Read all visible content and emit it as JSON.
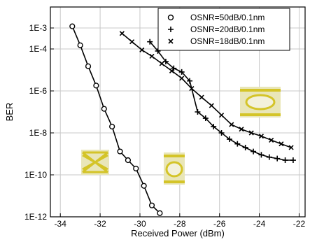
{
  "chart_data": {
    "type": "line",
    "title": "",
    "xlabel": "Received Power (dBm)",
    "ylabel": "BER",
    "xlim": [
      -34.5,
      -21.7
    ],
    "x_ticks": [
      -34,
      -32,
      -30,
      -28,
      -26,
      -24,
      -22
    ],
    "x_tick_labels": [
      "-34",
      "-32",
      "-30",
      "-28",
      "-26",
      "-24",
      "-22"
    ],
    "y_scale": "log",
    "ylim": [
      1e-12,
      0.01
    ],
    "y_ticks": [
      0.001,
      0.0001,
      1e-06,
      1e-08,
      1e-10,
      1e-12
    ],
    "y_tick_labels": [
      "1E-3",
      "1E-4",
      "1E-6",
      "1E-8",
      "1E-10",
      "1E-12"
    ],
    "grid": true,
    "legend_position": "top-right",
    "series": [
      {
        "name": "OSNR=50dB/0.1nm",
        "marker": "circle",
        "x": [
          -33.4,
          -33.0,
          -32.6,
          -32.2,
          -31.8,
          -31.4,
          -31.0,
          -30.6,
          -30.2,
          -29.8,
          -29.4,
          -29.0
        ],
        "y": [
          0.0012,
          0.00015,
          1.5e-05,
          1.8e-06,
          1.4e-07,
          2e-08,
          1.3e-09,
          5e-10,
          2e-10,
          3e-11,
          3.5e-12,
          1.5e-12
        ]
      },
      {
        "name": "OSNR=20dB/0.1nm",
        "marker": "plus",
        "x": [
          -29.5,
          -29.1,
          -28.7,
          -28.3,
          -27.9,
          -27.5,
          -27.1,
          -26.7,
          -26.3,
          -25.9,
          -25.5,
          -25.1,
          -24.7,
          -24.3,
          -23.9,
          -23.5,
          -23.1,
          -22.7,
          -22.3
        ],
        "y": [
          0.00022,
          8e-05,
          2.5e-05,
          1.2e-05,
          8e-06,
          3e-06,
          1e-07,
          5e-08,
          2e-08,
          1e-08,
          5e-09,
          3e-09,
          2e-09,
          1.3e-09,
          9e-10,
          7e-10,
          6e-10,
          5e-10,
          5e-10
        ]
      },
      {
        "name": "OSNR=18dB/0.1nm",
        "marker": "x",
        "x": [
          -30.9,
          -30.4,
          -29.9,
          -29.4,
          -28.9,
          -28.4,
          -27.9,
          -27.4,
          -26.9,
          -26.4,
          -25.9,
          -25.4,
          -24.9,
          -24.4,
          -23.9,
          -23.4,
          -22.9,
          -22.4
        ],
        "y": [
          0.00055,
          0.00022,
          9e-05,
          4.5e-05,
          2e-05,
          9e-06,
          4e-06,
          1.3e-06,
          5e-07,
          2e-07,
          7e-08,
          2.5e-08,
          1.5e-08,
          1e-08,
          7e-09,
          4.5e-09,
          3e-09,
          2e-09
        ]
      }
    ]
  },
  "legend": {
    "items": [
      {
        "label": "OSNR=50dB/0.1nm",
        "marker": "circle"
      },
      {
        "label": "OSNR=20dB/0.1nm",
        "marker": "plus"
      },
      {
        "label": "OSNR=18dB/0.1nm",
        "marker": "x"
      }
    ]
  },
  "eye_diagram_color": "#d8c830",
  "line_color": "#000000"
}
